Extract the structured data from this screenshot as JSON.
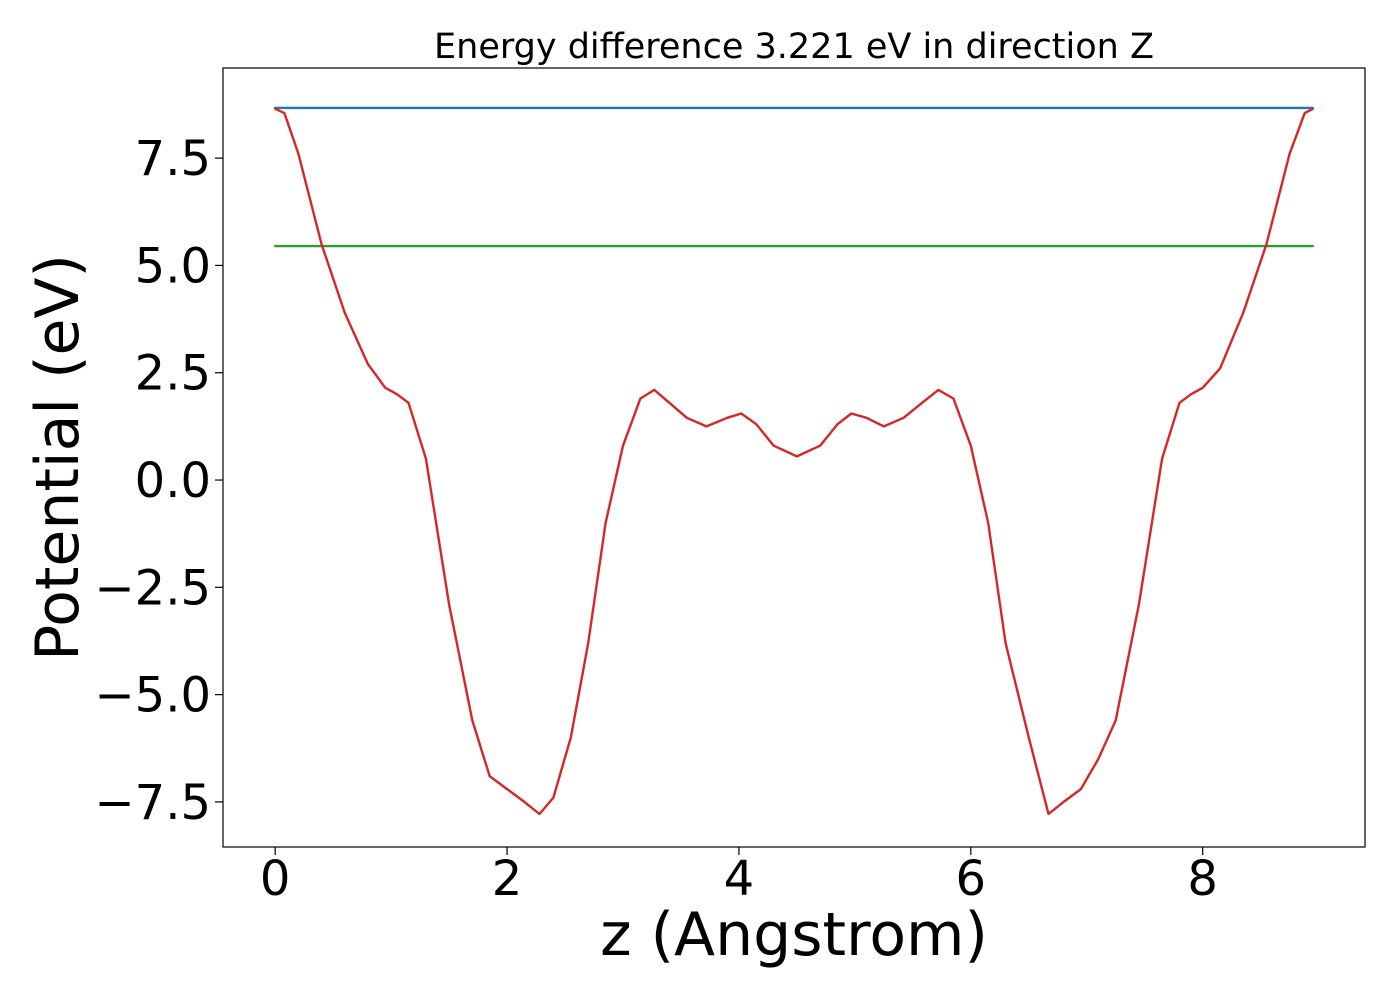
{
  "chart_data": {
    "type": "line",
    "title": "Energy difference 3.221 eV in direction Z",
    "xlabel": "z (Angstrom)",
    "ylabel": "Potential (eV)",
    "xlim": [
      -0.45,
      9.4
    ],
    "ylim": [
      -8.55,
      9.6
    ],
    "x_ticks": [
      {
        "value": 0,
        "label": "0"
      },
      {
        "value": 2,
        "label": "2"
      },
      {
        "value": 4,
        "label": "4"
      },
      {
        "value": 6,
        "label": "6"
      },
      {
        "value": 8,
        "label": "8"
      }
    ],
    "y_ticks": [
      {
        "value": 7.5,
        "label": "7.5"
      },
      {
        "value": 5.0,
        "label": "5.0"
      },
      {
        "value": 2.5,
        "label": "2.5"
      },
      {
        "value": 0.0,
        "label": "0.0"
      },
      {
        "value": -2.5,
        "label": "−2.5"
      },
      {
        "value": -5.0,
        "label": "−5.0"
      },
      {
        "value": -7.5,
        "label": "−7.5"
      }
    ],
    "grid": false,
    "legend": "none",
    "series": [
      {
        "color": "#1f77b4",
        "x": [
          0,
          8.95
        ],
        "y": [
          8.67,
          8.67
        ]
      },
      {
        "color": "#2ca02c",
        "x": [
          0,
          8.95
        ],
        "y": [
          5.45,
          5.45
        ]
      },
      {
        "color": "#d62728",
        "x": [
          0,
          0.08,
          0.2,
          0.4,
          0.6,
          0.8,
          0.95,
          1.05,
          1.15,
          1.3,
          1.5,
          1.7,
          1.85,
          2.0,
          2.15,
          2.28,
          2.4,
          2.55,
          2.7,
          2.85,
          3.0,
          3.15,
          3.27,
          3.4,
          3.55,
          3.72,
          3.9,
          4.02,
          4.15,
          4.3,
          4.5,
          4.7,
          4.85,
          4.97,
          5.1,
          5.25,
          5.42,
          5.58,
          5.72,
          5.85,
          6.0,
          6.15,
          6.3,
          6.5,
          6.67,
          6.8,
          6.95,
          7.1,
          7.25,
          7.45,
          7.65,
          7.8,
          7.9,
          8.0,
          8.15,
          8.35,
          8.55,
          8.75,
          8.88,
          8.95
        ],
        "y": [
          8.65,
          8.55,
          7.6,
          5.5,
          3.9,
          2.7,
          2.15,
          2.0,
          1.8,
          0.5,
          -2.9,
          -5.6,
          -6.9,
          -7.2,
          -7.5,
          -7.78,
          -7.4,
          -6.0,
          -3.8,
          -1.0,
          0.8,
          1.9,
          2.1,
          1.8,
          1.45,
          1.25,
          1.45,
          1.55,
          1.3,
          0.8,
          0.55,
          0.8,
          1.3,
          1.55,
          1.45,
          1.25,
          1.45,
          1.8,
          2.1,
          1.9,
          0.8,
          -1.0,
          -3.8,
          -6.0,
          -7.78,
          -7.5,
          -7.2,
          -6.5,
          -5.6,
          -2.9,
          0.5,
          1.8,
          2.0,
          2.15,
          2.6,
          3.9,
          5.5,
          7.6,
          8.55,
          8.65
        ]
      }
    ]
  }
}
